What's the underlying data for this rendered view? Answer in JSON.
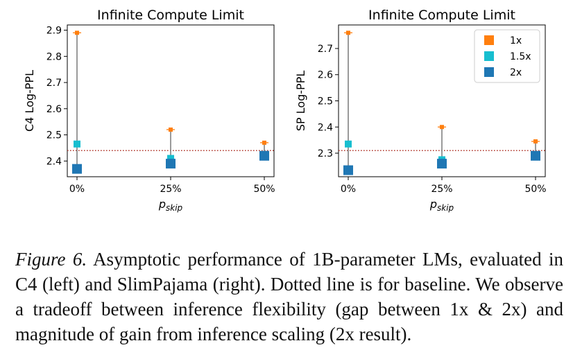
{
  "chart_data": [
    {
      "type": "scatter",
      "title": "Infinite Compute Limit",
      "xlabel": "p_skip",
      "ylabel": "C4 Log-PPL",
      "categories": [
        "0%",
        "25%",
        "50%"
      ],
      "ylim": [
        2.34,
        2.92
      ],
      "yticks": [
        2.4,
        2.5,
        2.6,
        2.7,
        2.8,
        2.9
      ],
      "yticklabels": [
        "2.4",
        "2.5",
        "2.6",
        "2.7",
        "2.8",
        "2.9"
      ],
      "baseline": 2.44,
      "legend": null,
      "series": [
        {
          "name": "1x",
          "values": [
            2.89,
            2.52,
            2.47
          ]
        },
        {
          "name": "1.5x",
          "values": [
            2.465,
            2.41,
            2.425
          ]
        },
        {
          "name": "2x",
          "values": [
            2.37,
            2.39,
            2.42
          ]
        }
      ]
    },
    {
      "type": "scatter",
      "title": "Infinite Compute Limit",
      "xlabel": "p_skip",
      "ylabel": "SP Log-PPL",
      "categories": [
        "0%",
        "25%",
        "50%"
      ],
      "ylim": [
        2.21,
        2.79
      ],
      "yticks": [
        2.3,
        2.4,
        2.5,
        2.6,
        2.7
      ],
      "yticklabels": [
        "2.3",
        "2.4",
        "2.5",
        "2.6",
        "2.7"
      ],
      "baseline": 2.31,
      "legend": "top-right",
      "series": [
        {
          "name": "1x",
          "values": [
            2.76,
            2.4,
            2.345
          ]
        },
        {
          "name": "1.5x",
          "values": [
            2.335,
            2.275,
            2.29
          ]
        },
        {
          "name": "2x",
          "values": [
            2.235,
            2.26,
            2.29
          ]
        }
      ]
    }
  ],
  "colors": {
    "1x": "#ff7f0e",
    "1.5x": "#17becf",
    "2x": "#1f77b4",
    "baseline": "#b03a2e",
    "stem": "#808080"
  },
  "caption": {
    "label": "Figure 6.",
    "text": "Asymptotic performance of 1B-parameter LMs, evaluated in C4 (left) and SlimPajama (right). Dotted line is for baseline. We observe a tradeoff between inference flexibility (gap between 1x & 2x) and magnitude of gain from inference scaling (2x result)."
  }
}
